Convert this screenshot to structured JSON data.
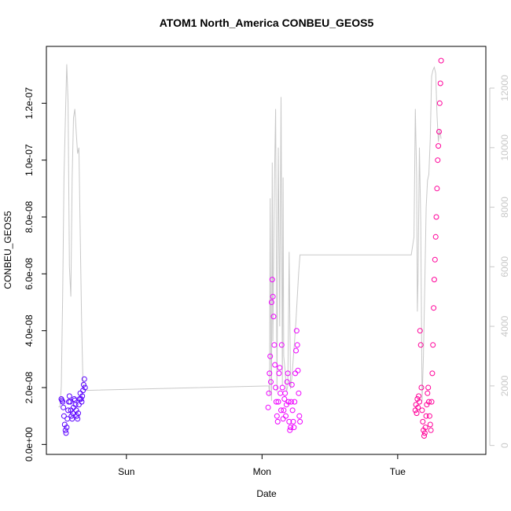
{
  "chart_data": {
    "type": "scatter",
    "title": "ATOM1 North_America CONBEU_GEOS5",
    "xlabel": "Date",
    "ylabel": "CONBEU_GEOS5",
    "x_ticks": [
      {
        "t": 0.5,
        "label": "Sun"
      },
      {
        "t": 1.5,
        "label": "Mon"
      },
      {
        "t": 2.5,
        "label": "Tue"
      }
    ],
    "xlim": [
      -0.09,
      3.15
    ],
    "ylim": [
      -3.5e-09,
      1.4e-07
    ],
    "y_ticks": [
      {
        "v": 0,
        "label": "0.0e+00"
      },
      {
        "v": 2e-08,
        "label": "2.0e-08"
      },
      {
        "v": 4e-08,
        "label": "4.0e-08"
      },
      {
        "v": 6e-08,
        "label": "6.0e-08"
      },
      {
        "v": 8e-08,
        "label": "8.0e-08"
      },
      {
        "v": 1e-07,
        "label": "1.0e-07"
      },
      {
        "v": 1.2e-07,
        "label": "1.2e-07"
      }
    ],
    "y2lim": [
      -300,
      13400
    ],
    "y2_ticks": [
      {
        "v": 0,
        "label": "0"
      },
      {
        "v": 2000,
        "label": "2000"
      },
      {
        "v": 4000,
        "label": "4000"
      },
      {
        "v": 6000,
        "label": "6000"
      },
      {
        "v": 8000,
        "label": "8000"
      },
      {
        "v": 10000,
        "label": "10000"
      },
      {
        "v": 12000,
        "label": "12000"
      }
    ],
    "colors": {
      "first_flight": "#5a00ff",
      "second_flight": "#ee00ff",
      "third_flight": "#ff0099",
      "altitude_line": "#c8c8c8"
    },
    "series": [
      {
        "role": "points",
        "color": "#5a00ff",
        "x": [
          0.02,
          0.025,
          0.03,
          0.035,
          0.04,
          0.045,
          0.05,
          0.055,
          0.06,
          0.065,
          0.07,
          0.075,
          0.08,
          0.085,
          0.09,
          0.095,
          0.1,
          0.105,
          0.11,
          0.115,
          0.12,
          0.125,
          0.13,
          0.135,
          0.14,
          0.145,
          0.15,
          0.155,
          0.16,
          0.165,
          0.17,
          0.175,
          0.18,
          0.185,
          0.19,
          0.195
        ],
        "y": [
          1.6e-08,
          1.55e-08,
          1.5e-08,
          1.3e-08,
          1e-08,
          7e-09,
          5e-09,
          4e-09,
          6e-09,
          9e-09,
          1.2e-08,
          1.5e-08,
          1.7e-08,
          1.5e-08,
          1.2e-08,
          1e-08,
          9e-09,
          1.1e-08,
          1.3e-08,
          1.6e-08,
          1.55e-08,
          1.4e-08,
          1.2e-08,
          1e-08,
          9e-09,
          1.1e-08,
          1.4e-08,
          1.6e-08,
          1.8e-08,
          1.6e-08,
          1.5e-08,
          1.7e-08,
          1.9e-08,
          2.1e-08,
          2.3e-08,
          2e-08
        ]
      },
      {
        "role": "points",
        "color": "#ee00ff",
        "x": [
          1.545,
          1.55,
          1.555,
          1.56,
          1.565,
          1.57,
          1.575,
          1.58,
          1.585,
          1.59,
          1.595,
          1.6,
          1.605,
          1.61,
          1.615,
          1.62,
          1.625,
          1.63,
          1.635,
          1.64,
          1.645,
          1.65,
          1.655,
          1.66,
          1.665,
          1.67,
          1.675,
          1.68,
          1.685,
          1.69,
          1.695,
          1.7,
          1.705,
          1.71,
          1.715,
          1.72,
          1.725,
          1.73,
          1.735,
          1.74,
          1.745,
          1.75,
          1.755,
          1.76,
          1.765,
          1.77,
          1.775,
          1.78
        ],
        "y": [
          1.3e-08,
          1.8e-08,
          2.5e-08,
          3.1e-08,
          2.2e-08,
          5e-08,
          5.8e-08,
          5.2e-08,
          4.5e-08,
          3.5e-08,
          2.8e-08,
          2e-08,
          1.5e-08,
          1e-08,
          8e-09,
          1.5e-08,
          2.5e-08,
          2.7e-08,
          1.8e-08,
          1.2e-08,
          3.5e-08,
          2e-08,
          9e-09,
          1.2e-08,
          1.6e-08,
          1.8e-08,
          1e-08,
          1.4e-08,
          2.2e-08,
          2.5e-08,
          1.5e-08,
          8e-09,
          5e-09,
          6e-09,
          1.5e-08,
          2.1e-08,
          1.2e-08,
          8e-09,
          6e-09,
          1.5e-08,
          2.5e-08,
          3.3e-08,
          4e-08,
          3.5e-08,
          2.6e-08,
          1.8e-08,
          1e-08,
          8e-09
        ]
      },
      {
        "role": "points",
        "color": "#ff0099",
        "x": [
          2.63,
          2.635,
          2.64,
          2.645,
          2.65,
          2.655,
          2.66,
          2.665,
          2.67,
          2.675,
          2.68,
          2.685,
          2.69,
          2.695,
          2.7,
          2.705,
          2.71,
          2.715,
          2.72,
          2.725,
          2.73,
          2.735,
          2.74,
          2.745,
          2.75,
          2.755,
          2.76,
          2.765,
          2.77,
          2.775,
          2.78,
          2.785,
          2.79,
          2.795,
          2.8,
          2.805,
          2.81,
          2.815,
          2.82
        ],
        "y": [
          1.2e-08,
          1.4e-08,
          1.1e-08,
          1.6e-08,
          1.3e-08,
          1.7e-08,
          1.5e-08,
          4e-08,
          3.5e-08,
          2e-08,
          1.2e-08,
          8e-09,
          5e-09,
          3e-09,
          4e-09,
          6e-09,
          1e-08,
          1.4e-08,
          1.8e-08,
          2e-08,
          1.5e-08,
          1e-08,
          7e-09,
          5e-09,
          1.5e-08,
          2.5e-08,
          3.5e-08,
          4.8e-08,
          5.8e-08,
          6.5e-08,
          7.3e-08,
          8e-08,
          9e-08,
          1e-07,
          1.05e-07,
          1.1e-07,
          1.2e-07,
          1.27e-07,
          1.35e-07
        ]
      },
      {
        "role": "line",
        "axis": "secondary",
        "color": "#c8c8c8",
        "x": [
          0.0,
          0.01,
          0.02,
          0.03,
          0.04,
          0.05,
          0.06,
          0.07,
          0.08,
          0.09,
          0.1,
          0.11,
          0.12,
          0.13,
          0.14,
          0.15,
          0.16,
          0.17,
          0.18,
          0.19,
          0.2,
          1.55,
          1.555,
          1.56,
          1.565,
          1.57,
          1.575,
          1.58,
          1.59,
          1.6,
          1.605,
          1.61,
          1.62,
          1.63,
          1.64,
          1.65,
          1.655,
          1.66,
          1.67,
          1.68,
          1.69,
          1.7,
          1.71,
          1.72,
          1.73,
          1.74,
          1.75,
          1.76,
          1.77,
          1.78,
          2.6,
          2.62,
          2.63,
          2.64,
          2.645,
          2.65,
          2.66,
          2.67,
          2.68,
          2.69,
          2.7,
          2.71,
          2.72,
          2.73,
          2.74,
          2.75,
          2.76,
          2.77,
          2.78,
          2.79,
          2.8,
          2.81,
          2.82
        ],
        "y": [
          1300,
          1300,
          2000,
          5000,
          9000,
          11000,
          12800,
          11500,
          6000,
          5000,
          9000,
          11000,
          11300,
          10500,
          9800,
          10000,
          7000,
          4000,
          2000,
          1900,
          1850,
          2000,
          1700,
          8300,
          3000,
          1500,
          9500,
          3500,
          8500,
          11300,
          7000,
          1800,
          10000,
          4000,
          11700,
          2000,
          9000,
          3000,
          2500,
          1800,
          2000,
          6500,
          1900,
          2300,
          2900,
          3500,
          4200,
          5000,
          5800,
          6400,
          6400,
          7000,
          11300,
          9000,
          4500,
          5500,
          10000,
          7500,
          1500,
          3000,
          5500,
          8000,
          8900,
          9100,
          10300,
          12400,
          12600,
          12700,
          12500,
          11100,
          10200,
          10600,
          10300
        ]
      }
    ]
  }
}
